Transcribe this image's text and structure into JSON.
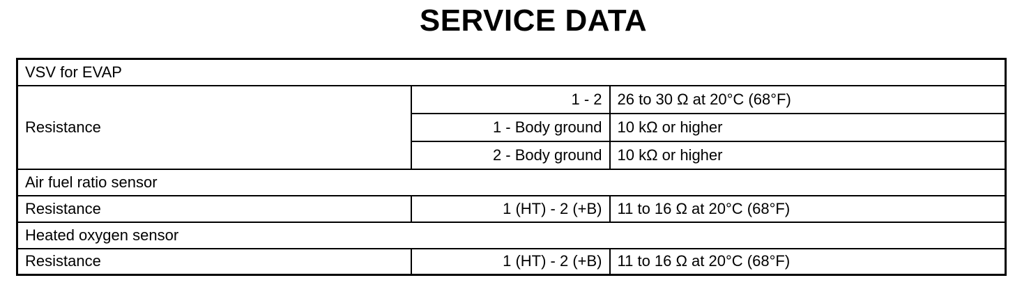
{
  "title": "SERVICE DATA",
  "colors": {
    "background": "#ffffff",
    "border": "#000000",
    "text": "#000000"
  },
  "table": {
    "sections": [
      {
        "header": "VSV for EVAP",
        "rows": [
          {
            "item": "Resistance",
            "terminals": "1 - 2",
            "spec": "26 to 30 Ω at 20°C (68°F)"
          },
          {
            "item": "",
            "terminals": "1 - Body ground",
            "spec": "10 kΩ or higher"
          },
          {
            "item": "",
            "terminals": "2 - Body ground",
            "spec": "10 kΩ or higher"
          }
        ]
      },
      {
        "header": "Air fuel ratio sensor",
        "rows": [
          {
            "item": "Resistance",
            "terminals": "1 (HT) - 2 (+B)",
            "spec": "11 to 16 Ω at 20°C (68°F)"
          }
        ]
      },
      {
        "header": "Heated oxygen sensor",
        "rows": [
          {
            "item": "Resistance",
            "terminals": "1 (HT) - 2 (+B)",
            "spec": "11 to 16 Ω at 20°C (68°F)"
          }
        ]
      }
    ]
  }
}
